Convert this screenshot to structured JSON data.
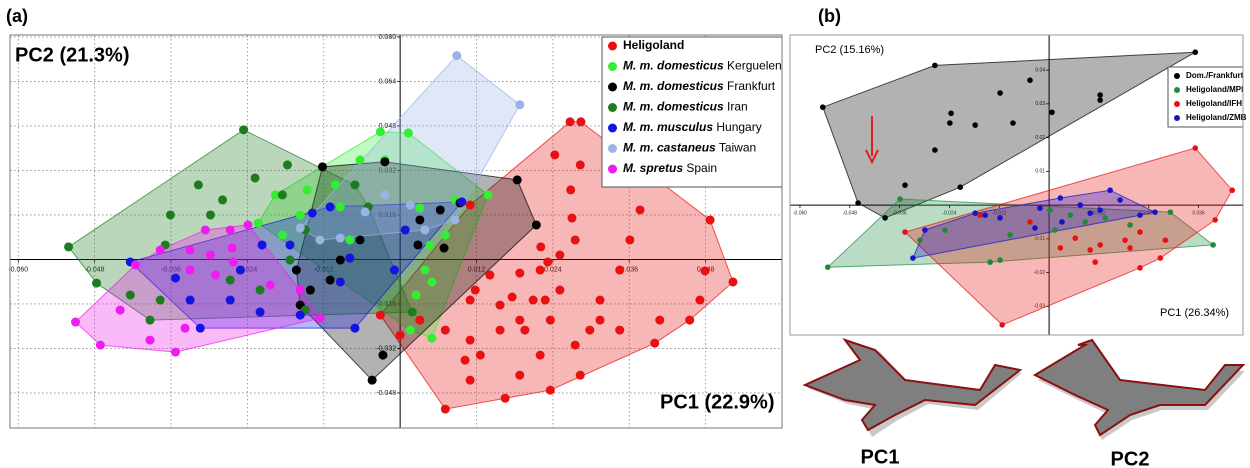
{
  "chart_data": [
    {
      "type": "scatter",
      "label": "(a)",
      "legend": "upper right",
      "grid": true,
      "annotations": [
        "PC2 (21.3%)",
        "PC1 (22.9%)"
      ],
      "xlim": [
        -0.0613,
        0.06
      ],
      "ylim": [
        -0.0606,
        0.0807
      ],
      "xticks": [
        {
          "value": -0.06,
          "label": "-0.060"
        },
        -0.048,
        -0.036,
        -0.024,
        -0.012,
        0.012,
        0.024,
        0.036,
        0.048
      ],
      "yticks": [
        {
          "value": 0.08,
          "label": "0.080"
        },
        0.064,
        0.048,
        0.032,
        0.016,
        -0.016,
        -0.032,
        -0.048
      ],
      "series": [
        {
          "name": "Heligoland",
          "color": "#e81010",
          "x": [
            0.0267,
            0.0284,
            0.0243,
            0.0268,
            0.0283,
            0.027,
            0.0275,
            0.0251,
            0.0221,
            0.0232,
            0.022,
            0.0188,
            0.0176,
            0.0157,
            0.0141,
            0.0118,
            0.011,
            0.0157,
            0.0188,
            0.0209,
            0.0228,
            0.0236,
            0.0196,
            0.0251,
            0.0314,
            0.0314,
            0.0345,
            0.0361,
            0.04,
            0.0408,
            0.0455,
            0.0471,
            0.0479,
            0.0523,
            0.0487,
            0.0377,
            0.0345,
            0.0275,
            0.022,
            0.0165,
            0.0071,
            0.0102,
            0.011,
            0.0071,
            0.0031,
            0,
            -0.0031,
            0.0188,
            0.0236,
            0.0298,
            0.0126,
            0.011,
            0.0283,
            0.011
          ],
          "y": [
            0.0495,
            0.0495,
            0.0376,
            0.025,
            0.034,
            0.0149,
            0.007,
            0.0016,
            0.0045,
            -0.0009,
            -0.0038,
            -0.0049,
            -0.0135,
            -0.0164,
            -0.0056,
            -0.011,
            -0.0146,
            -0.0254,
            -0.0218,
            -0.0146,
            -0.0146,
            -0.0218,
            -0.0254,
            -0.011,
            -0.0146,
            -0.0218,
            -0.0038,
            0.007,
            -0.0301,
            -0.0218,
            -0.0218,
            -0.0146,
            -0.0041,
            -0.0081,
            0.0142,
            0.0178,
            -0.0254,
            -0.0308,
            -0.0344,
            -0.0499,
            -0.0538,
            -0.0362,
            -0.029,
            -0.0254,
            -0.0218,
            -0.0272,
            -0.02,
            -0.0416,
            -0.047,
            -0.0254,
            -0.0344,
            -0.0434,
            -0.0416,
            0.0196
          ]
        },
        {
          "name": "M. m. domesticus Kerguelen",
          "color": "#33ee33",
          "x": [
            -0.0031,
            0.0013,
            0.0138,
            0.0031,
            0.0086,
            0.0047,
            0.0039,
            0.0025,
            0.0016,
            0.005,
            -0.0094,
            -0.0157,
            -0.0185,
            -0.0223,
            -0.0196,
            -0.0146,
            -0.0102,
            -0.0024,
            -0.0063,
            0.0071,
            0.005,
            -0.0079
          ],
          "y": [
            0.0459,
            0.0455,
            0.0232,
            0.0185,
            0.0214,
            0.0052,
            -0.0038,
            -0.0128,
            -0.0254,
            -0.0283,
            0.0189,
            0.016,
            0.0088,
            0.0131,
            0.0232,
            0.025,
            0.0268,
            0.0358,
            0.0358,
            0.0088,
            -0.0081,
            0.007
          ]
        },
        {
          "name": "M. m. domesticus Frankfurt",
          "color": "#000000",
          "x": [
            -0.0024,
            -0.0122,
            0.0184,
            0.0214,
            0.0094,
            0.0063,
            0.0031,
            0.0069,
            0.0028,
            -0.0044,
            -0.0027,
            -0.011,
            -0.0141,
            -0.0157,
            -0.0163,
            -0.0094,
            -0.0063
          ],
          "y": [
            0.0351,
            0.0333,
            0.0286,
            0.0124,
            0.0203,
            0.0178,
            0.0142,
            0.0041,
            0.0052,
            -0.0434,
            -0.0344,
            -0.0074,
            -0.011,
            -0.0164,
            -0.0038,
            -0.0002,
            0.007
          ]
        },
        {
          "name": "M. m. domesticus Iran",
          "color": "#1e7b1e",
          "x": [
            -0.0246,
            -0.0521,
            -0.0477,
            -0.0298,
            -0.0361,
            -0.0369,
            -0.0317,
            -0.0228,
            -0.0177,
            -0.0185,
            -0.0173,
            -0.022,
            -0.0267,
            -0.0377,
            -0.0424,
            -0.0393,
            -0.0071,
            -0.005,
            -0.0149,
            -0.0149,
            0.0019,
            -0.0279
          ],
          "y": [
            0.0466,
            0.0045,
            -0.0085,
            0.016,
            0.016,
            0.0052,
            0.0268,
            0.0293,
            0.034,
            0.0232,
            -0.0002,
            -0.011,
            -0.0074,
            -0.0146,
            -0.0128,
            -0.0218,
            0.0268,
            0.0189,
            0.0106,
            -0.0182,
            -0.0189,
            0.0214
          ]
        },
        {
          "name": "M. m. musculus Hungary",
          "color": "#1414e0",
          "x": [
            -0.0424,
            -0.0314,
            -0.0071,
            0.0097,
            -0.0138,
            -0.011,
            -0.0173,
            -0.0217,
            -0.0251,
            -0.0353,
            -0.033,
            -0.0267,
            -0.022,
            -0.0157,
            -0.0094,
            -0.0079,
            -0.0009,
            0.0008
          ],
          "y": [
            -0.0009,
            -0.0247,
            -0.0247,
            0.0207,
            0.0167,
            0.0189,
            0.0052,
            0.0052,
            -0.0038,
            -0.0067,
            -0.0146,
            -0.0146,
            -0.0189,
            -0.02,
            -0.0081,
            0.0005,
            -0.0038,
            0.0106
          ]
        },
        {
          "name": "M. m. castaneus Taiwan",
          "color": "#98b4e4",
          "x": [
            0.0089,
            0.0188,
            0.0016,
            -0.0126,
            -0.0094,
            -0.0055,
            -0.0024,
            0.0039,
            0.0086,
            -0.0157
          ],
          "y": [
            0.0733,
            0.0556,
            0.0196,
            0.007,
            0.0077,
            0.0171,
            0.0232,
            0.0106,
            0.0142,
            0.0113
          ]
        },
        {
          "name": "M. spretus Spain",
          "color": "#ee1cee",
          "x": [
            -0.051,
            -0.0471,
            -0.044,
            -0.0393,
            -0.0353,
            -0.0338,
            -0.033,
            -0.0298,
            -0.0264,
            -0.0239,
            -0.0267,
            -0.0306,
            -0.033,
            -0.029,
            -0.0262,
            -0.0204,
            -0.0157,
            -0.0126,
            -0.0377,
            -0.0416
          ],
          "y": [
            -0.0225,
            -0.0308,
            -0.0182,
            -0.029,
            -0.0333,
            -0.0247,
            0.0034,
            0.0016,
            0.0041,
            0.0124,
            0.0106,
            0.0106,
            -0.0038,
            -0.0056,
            -0.0009,
            -0.0092,
            -0.011,
            -0.0211,
            0.0034,
            -0.002
          ]
        }
      ]
    },
    {
      "type": "scatter",
      "label": "(b)",
      "legend": "upper right",
      "grid": false,
      "annotations": [
        "PC2 (15.16%)",
        "PC1 (26.34%)"
      ],
      "xlim": [
        -0.0624,
        0.0467
      ],
      "ylim": [
        -0.0385,
        0.0504
      ],
      "xticks": [
        {
          "value": -0.06,
          "label": "-0.060"
        },
        -0.048,
        -0.036,
        -0.024,
        -0.012,
        0.012,
        0.024,
        0.036
      ],
      "yticks": [
        0.04,
        0.03,
        0.02,
        0.01,
        -0.01,
        -0.02,
        -0.03
      ],
      "series": [
        {
          "name": "Dom./Frankfurt",
          "color": "#000000",
          "x": [
            0.0352,
            -0.0275,
            -0.0545,
            -0.046,
            -0.0395,
            -0.0118,
            -0.0236,
            -0.0178,
            -0.0239,
            -0.0087,
            -0.0046,
            0.0123,
            0.0123,
            0.0007,
            -0.0214,
            -0.0347,
            -0.0275
          ],
          "y": [
            0.0453,
            0.0414,
            0.029,
            0.0006,
            -0.0038,
            0.0332,
            0.0272,
            0.0237,
            0.0243,
            0.0243,
            0.037,
            0.0326,
            0.0311,
            0.0275,
            0.0053,
            0.0059,
            0.0163
          ]
        },
        {
          "name": "Heligoland/MPI",
          "color": "#1e8b3a",
          "x": [
            -0.0533,
            -0.0359,
            0.0395,
            0.0292,
            -0.0311,
            0.0002,
            0.0051,
            -0.0094,
            -0.0118,
            -0.0142,
            0.0087,
            0.0135,
            0.0014,
            0.0195,
            -0.0251
          ],
          "y": [
            -0.0184,
            0.0018,
            -0.0118,
            -0.0021,
            -0.0104,
            -0.0015,
            -0.003,
            -0.0089,
            -0.0163,
            -0.0169,
            -0.005,
            -0.0038,
            -0.0074,
            -0.0059,
            -0.0074
          ]
        },
        {
          "name": "Heligoland/IFH",
          "color": "#e81010",
          "x": [
            0.0352,
            0.0441,
            -0.0347,
            -0.0113,
            0.0268,
            0.04,
            0.0219,
            0.0183,
            0.0195,
            0.0123,
            0.0099,
            0.0111,
            0.0027,
            -0.0046,
            -0.0166,
            0.0063,
            0.0219,
            0.028
          ],
          "y": [
            0.0169,
            0.0044,
            -0.008,
            -0.0355,
            -0.0157,
            -0.0044,
            -0.008,
            -0.0104,
            -0.0127,
            -0.0118,
            -0.0133,
            -0.0169,
            -0.0127,
            -0.005,
            -0.003,
            -0.0098,
            -0.0186,
            -0.0104
          ]
        },
        {
          "name": "Heligoland/ZMB",
          "color": "#1414c8",
          "x": [
            0.0255,
            0.0147,
            -0.0328,
            -0.0299,
            -0.0178,
            -0.0154,
            -0.0118,
            -0.0022,
            0.0027,
            0.0075,
            0.0099,
            0.0123,
            0.0171,
            0.0219,
            -0.0034,
            0.0031
          ],
          "y": [
            -0.0021,
            0.0044,
            -0.0157,
            -0.0074,
            -0.0024,
            -0.003,
            -0.0038,
            -0.0009,
            0.0021,
            0,
            -0.0024,
            -0.0015,
            0.0015,
            -0.003,
            -0.0068,
            -0.005
          ]
        }
      ]
    }
  ],
  "shape_panels": {
    "labels": [
      "PC1",
      "PC2"
    ]
  }
}
